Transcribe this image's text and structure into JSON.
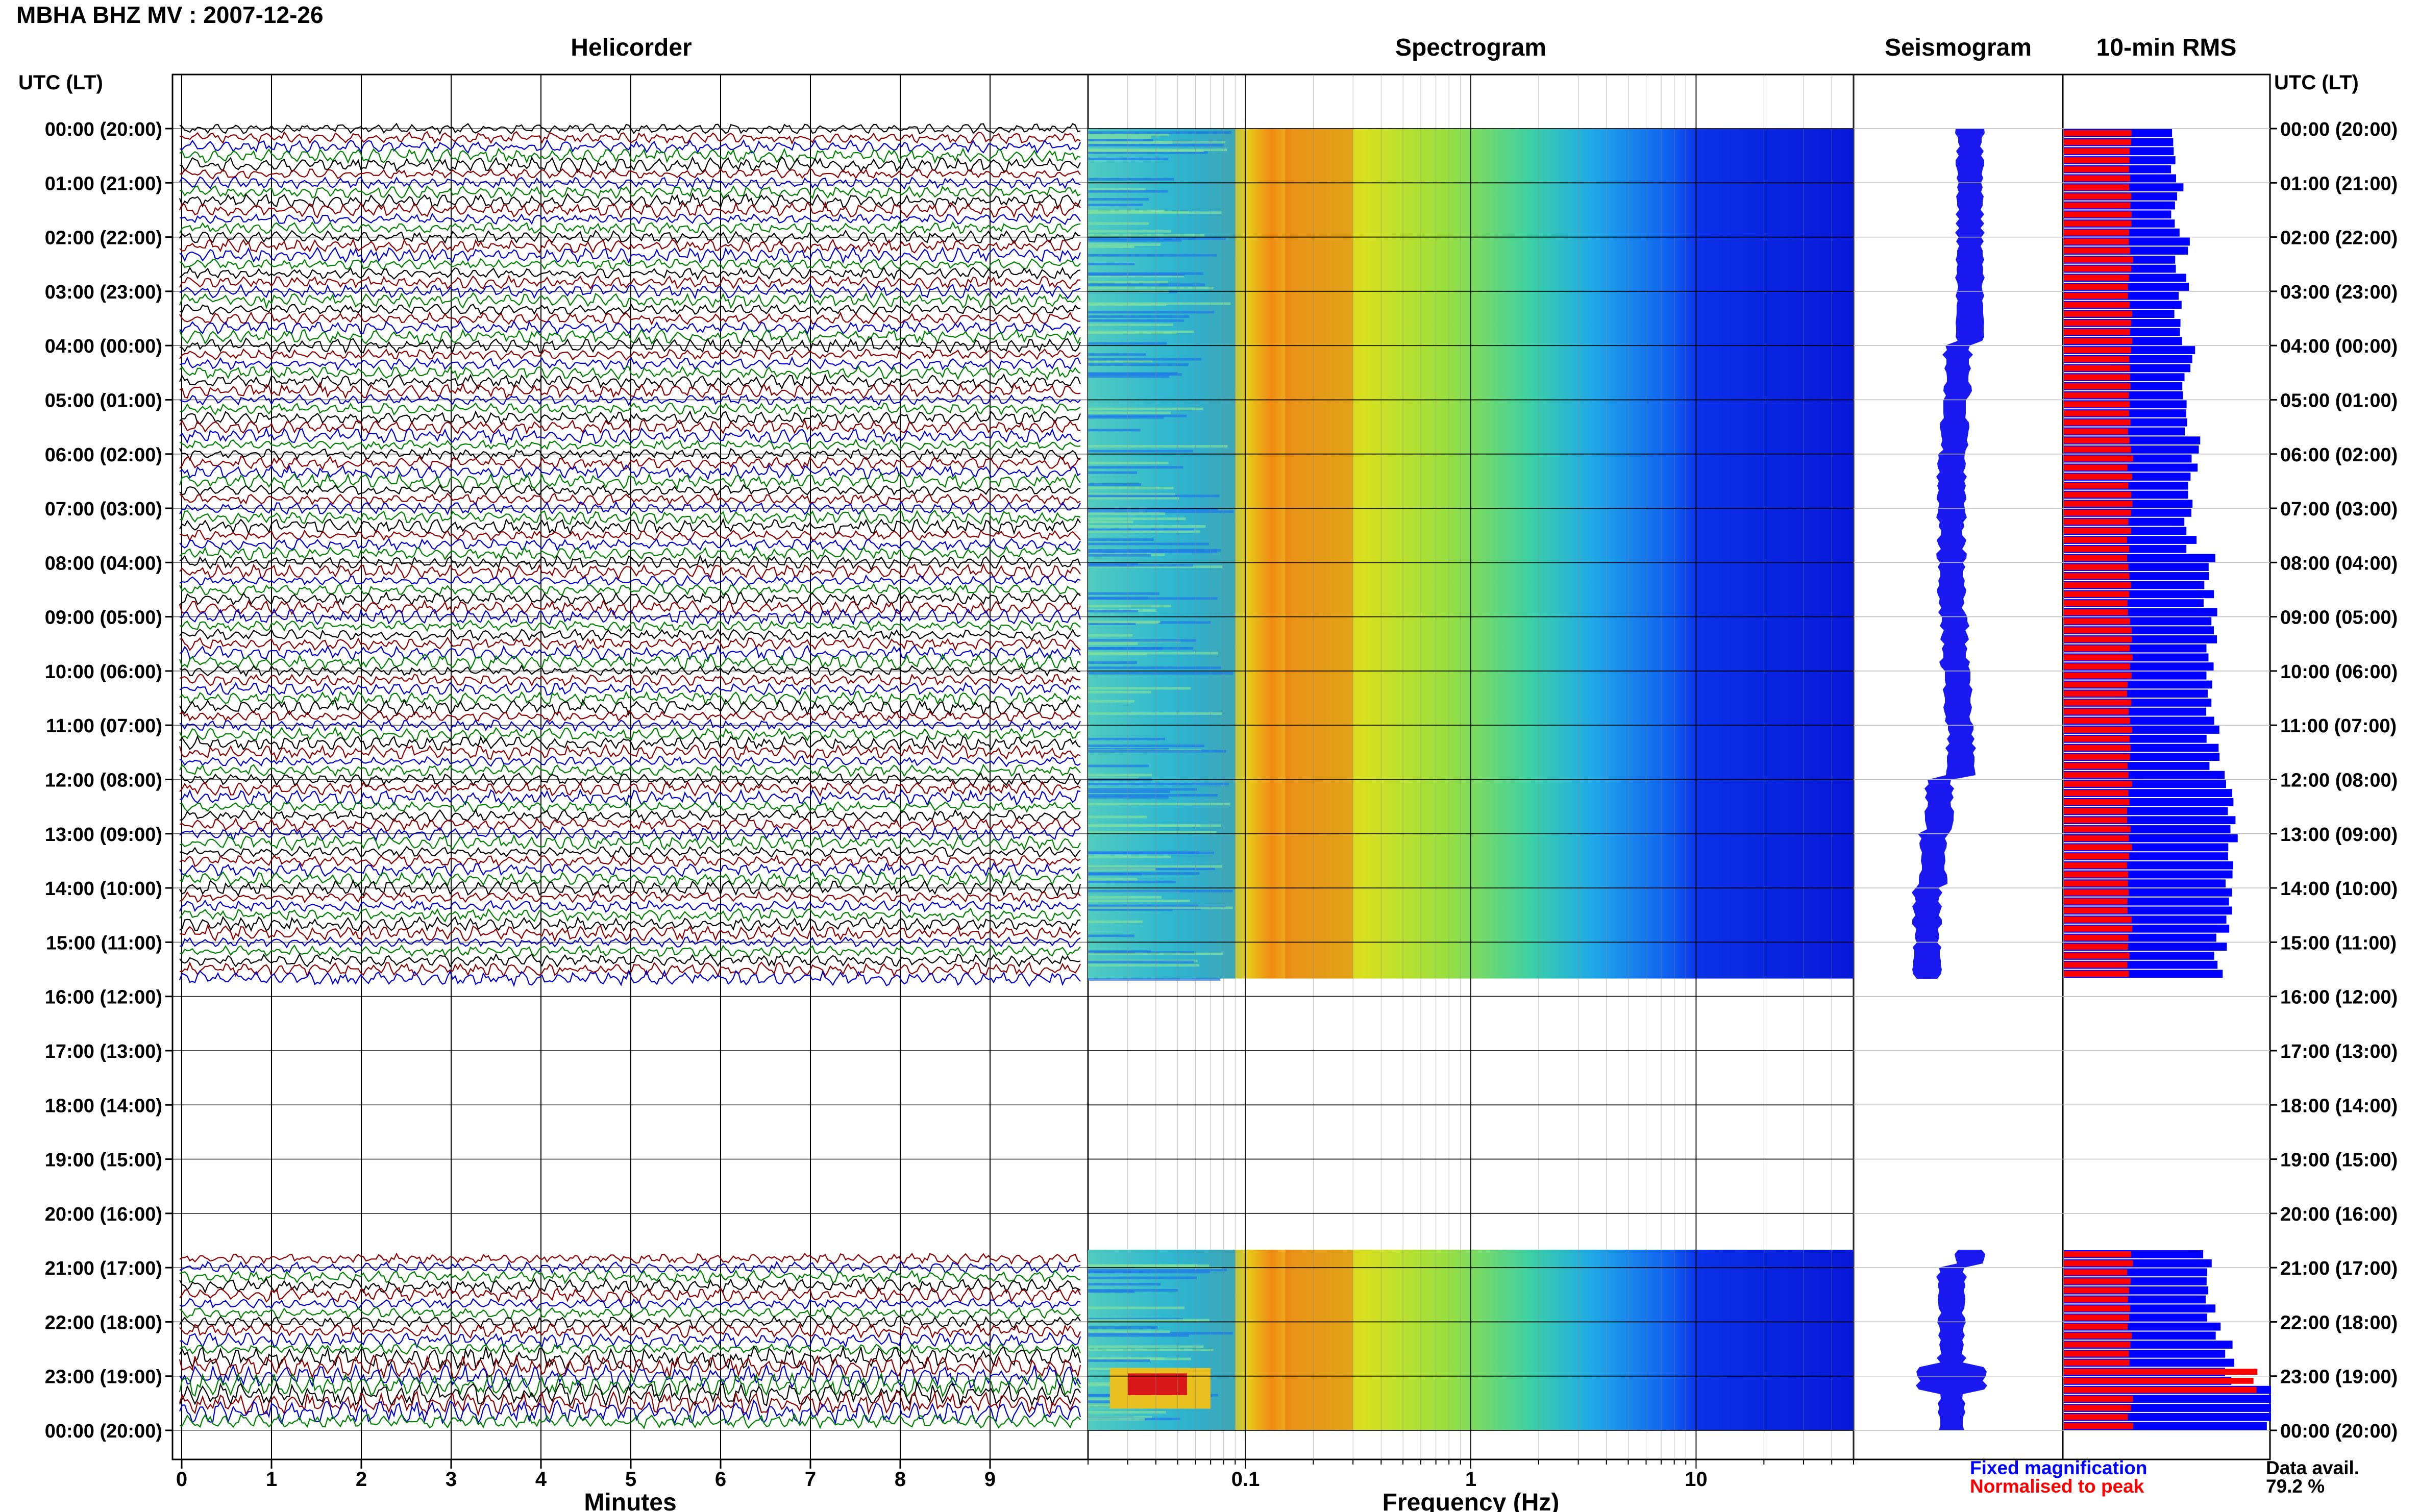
{
  "title": "MBHA BHZ MV : 2007-12-26",
  "panels": {
    "helicorder": "Helicorder",
    "spectrogram": "Spectrogram",
    "seismogram": "Seismogram",
    "rms": "10-min RMS"
  },
  "time_axis_title": "UTC (LT)",
  "time_labels": [
    "00:00 (20:00)",
    "01:00 (21:00)",
    "02:00 (22:00)",
    "03:00 (23:00)",
    "04:00 (00:00)",
    "05:00 (01:00)",
    "06:00 (02:00)",
    "07:00 (03:00)",
    "08:00 (04:00)",
    "09:00 (05:00)",
    "10:00 (06:00)",
    "11:00 (07:00)",
    "12:00 (08:00)",
    "13:00 (09:00)",
    "14:00 (10:00)",
    "15:00 (11:00)",
    "16:00 (12:00)",
    "17:00 (13:00)",
    "18:00 (14:00)",
    "19:00 (15:00)",
    "20:00 (16:00)",
    "21:00 (17:00)",
    "22:00 (18:00)",
    "23:00 (19:00)",
    "00:00 (20:00)"
  ],
  "x_axes": {
    "helicorder_label": "Minutes",
    "helicorder_ticks": [
      "0",
      "1",
      "2",
      "3",
      "4",
      "5",
      "6",
      "7",
      "8",
      "9"
    ],
    "spectrogram_label": "Frequency (Hz)",
    "spectrogram_ticks": [
      "0.1",
      "1",
      "10"
    ]
  },
  "legend": {
    "fixed": "Fixed magnification",
    "normalised": "Normalised to peak",
    "fixed_color": "#0000ff",
    "normalised_color": "#ff0000"
  },
  "data_availability": {
    "label": "Data avail.",
    "value": "79.2 %"
  },
  "colors": {
    "trace_cycle": [
      "#000000",
      "#8b0000",
      "#0000cd",
      "#008000"
    ]
  },
  "chart_data": {
    "type": "helicorder",
    "date": "2007-12-26",
    "hours_utc": 24,
    "data_gaps_utc": [
      [
        15.67,
        20.67
      ]
    ],
    "rms_10min_fixed": [
      {
        "start_utc": 0.0,
        "end_utc": 15.67,
        "relative_level": [
          0.55,
          0.55,
          0.57,
          0.57,
          0.6,
          0.62,
          0.62,
          0.62,
          0.7,
          0.72,
          0.72,
          0.72,
          0.8,
          0.8,
          0.78,
          0.75
        ]
      },
      {
        "start_utc": 20.67,
        "end_utc": 24.0,
        "relative_level": [
          0.7,
          0.72,
          0.8,
          1.0
        ]
      }
    ],
    "seismogram_offset_trend": [
      0.0,
      0.0,
      0.0,
      0.0,
      -0.2,
      -0.25,
      -0.3,
      -0.3,
      -0.3,
      -0.25,
      -0.2,
      -0.15,
      -0.5,
      -0.6,
      -0.7,
      -0.7,
      null,
      null,
      null,
      null,
      null,
      -0.3,
      -0.3,
      -0.3,
      -0.3
    ],
    "spectrogram": {
      "freq_range_hz": [
        0.02,
        50
      ],
      "freq_scale": "log",
      "peak_band_hz": [
        0.15,
        0.3
      ]
    }
  }
}
